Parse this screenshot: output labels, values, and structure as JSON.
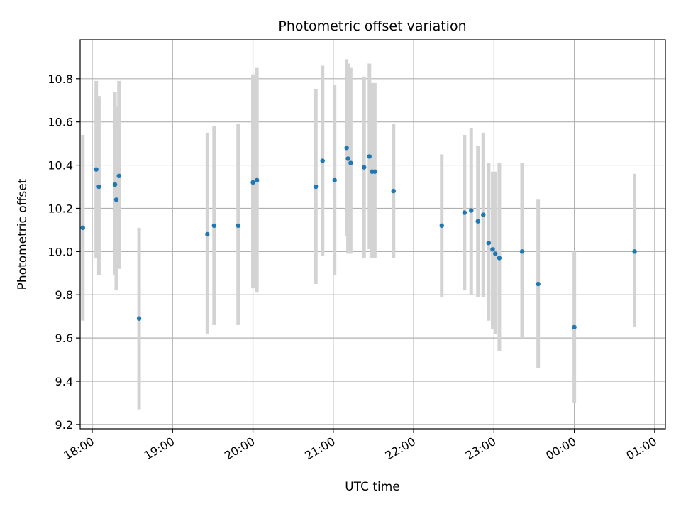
{
  "chart_data": {
    "type": "scatter",
    "title": "Photometric offset variation",
    "xlabel": "UTC time",
    "ylabel": "Photometric offset",
    "x_ticks": [
      "18:00",
      "19:00",
      "20:00",
      "21:00",
      "22:00",
      "23:00",
      "00:00",
      "01:00"
    ],
    "y_ticks": [
      "9.2",
      "9.4",
      "9.6",
      "9.8",
      "10.0",
      "10.2",
      "10.4",
      "10.6",
      "10.8"
    ],
    "xlim": [
      "17:51",
      "01:08"
    ],
    "ylim": [
      9.18,
      10.98
    ],
    "grid": true,
    "point_color": "#1f77b4",
    "errorbar_color": "#d3d3d3",
    "points": [
      {
        "x": "17:53",
        "y": 10.11,
        "lo": 9.68,
        "hi": 10.54
      },
      {
        "x": "18:03",
        "y": 10.38,
        "lo": 9.97,
        "hi": 10.79
      },
      {
        "x": "18:05",
        "y": 10.3,
        "lo": 9.89,
        "hi": 10.72
      },
      {
        "x": "18:17",
        "y": 10.31,
        "lo": 9.89,
        "hi": 10.74
      },
      {
        "x": "18:18",
        "y": 10.24,
        "lo": 9.82,
        "hi": 10.67
      },
      {
        "x": "18:20",
        "y": 10.35,
        "lo": 9.92,
        "hi": 10.79
      },
      {
        "x": "18:35",
        "y": 9.69,
        "lo": 9.27,
        "hi": 10.11
      },
      {
        "x": "19:26",
        "y": 10.08,
        "lo": 9.62,
        "hi": 10.55
      },
      {
        "x": "19:31",
        "y": 10.12,
        "lo": 9.66,
        "hi": 10.58
      },
      {
        "x": "19:49",
        "y": 10.12,
        "lo": 9.66,
        "hi": 10.59
      },
      {
        "x": "20:00",
        "y": 10.32,
        "lo": 9.83,
        "hi": 10.82
      },
      {
        "x": "20:03",
        "y": 10.33,
        "lo": 9.81,
        "hi": 10.85
      },
      {
        "x": "20:47",
        "y": 10.3,
        "lo": 9.85,
        "hi": 10.75
      },
      {
        "x": "20:52",
        "y": 10.42,
        "lo": 9.98,
        "hi": 10.86
      },
      {
        "x": "21:01",
        "y": 10.33,
        "lo": 9.89,
        "hi": 10.77
      },
      {
        "x": "21:10",
        "y": 10.48,
        "lo": 10.07,
        "hi": 10.89
      },
      {
        "x": "21:11",
        "y": 10.43,
        "lo": 9.99,
        "hi": 10.87
      },
      {
        "x": "21:13",
        "y": 10.41,
        "lo": 9.99,
        "hi": 10.85
      },
      {
        "x": "21:23",
        "y": 10.39,
        "lo": 9.97,
        "hi": 10.81
      },
      {
        "x": "21:27",
        "y": 10.44,
        "lo": 10.01,
        "hi": 10.87
      },
      {
        "x": "21:29",
        "y": 10.37,
        "lo": 9.97,
        "hi": 10.78
      },
      {
        "x": "21:31",
        "y": 10.37,
        "lo": 9.97,
        "hi": 10.78
      },
      {
        "x": "21:45",
        "y": 10.28,
        "lo": 9.97,
        "hi": 10.59
      },
      {
        "x": "22:21",
        "y": 10.12,
        "lo": 9.79,
        "hi": 10.45
      },
      {
        "x": "22:38",
        "y": 10.18,
        "lo": 9.82,
        "hi": 10.54
      },
      {
        "x": "22:43",
        "y": 10.19,
        "lo": 9.8,
        "hi": 10.57
      },
      {
        "x": "22:48",
        "y": 10.14,
        "lo": 9.79,
        "hi": 10.49
      },
      {
        "x": "22:52",
        "y": 10.17,
        "lo": 9.79,
        "hi": 10.55
      },
      {
        "x": "22:56",
        "y": 10.04,
        "lo": 9.68,
        "hi": 10.41
      },
      {
        "x": "22:59",
        "y": 10.01,
        "lo": 9.64,
        "hi": 10.37
      },
      {
        "x": "23:01",
        "y": 9.99,
        "lo": 9.62,
        "hi": 10.37
      },
      {
        "x": "23:04",
        "y": 9.97,
        "lo": 9.54,
        "hi": 10.41
      },
      {
        "x": "23:21",
        "y": 10.0,
        "lo": 9.6,
        "hi": 10.41
      },
      {
        "x": "23:33",
        "y": 9.85,
        "lo": 9.46,
        "hi": 10.24
      },
      {
        "x": "00:00",
        "y": 9.65,
        "lo": 9.3,
        "hi": 10.0
      },
      {
        "x": "00:45",
        "y": 10.0,
        "lo": 9.65,
        "hi": 10.36
      }
    ]
  }
}
